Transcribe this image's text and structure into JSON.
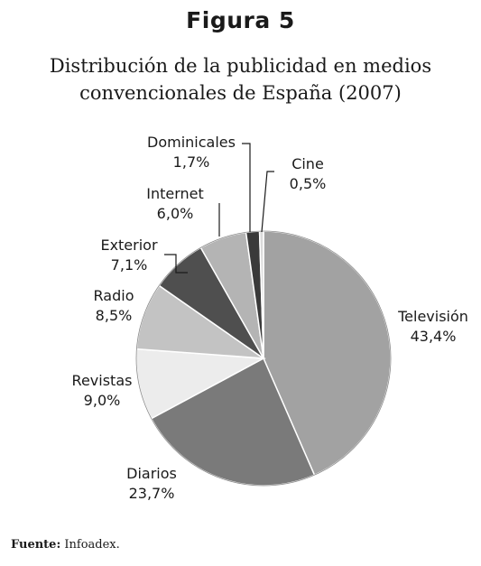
{
  "figure_label": "Figura 5",
  "title_lines": [
    "Distribución de la publicidad en medios",
    "convencionales de España (2007)"
  ],
  "source": {
    "label": "Fuente:",
    "value": "Infoadex."
  },
  "chart_data": {
    "type": "pie",
    "title": "Distribución de la publicidad en medios convencionales de España (2007)",
    "unit": "%",
    "start": "12 o'clock",
    "direction": "clockwise",
    "slices": [
      {
        "name": "Televisión",
        "value": 43.4,
        "label": "43,4%",
        "color": "#a2a2a2"
      },
      {
        "name": "Diarios",
        "value": 23.7,
        "label": "23,7%",
        "color": "#7a7a7a"
      },
      {
        "name": "Revistas",
        "value": 9.0,
        "label": "9,0%",
        "color": "#ececec"
      },
      {
        "name": "Radio",
        "value": 8.5,
        "label": "8,5%",
        "color": "#c3c3c3"
      },
      {
        "name": "Exterior",
        "value": 7.1,
        "label": "7,1%",
        "color": "#4f4f4f"
      },
      {
        "name": "Internet",
        "value": 6.0,
        "label": "6,0%",
        "color": "#b4b4b4"
      },
      {
        "name": "Dominicales",
        "value": 1.7,
        "label": "1,7%",
        "color": "#3a3a3a"
      },
      {
        "name": "Cine",
        "value": 0.5,
        "label": "0,5%",
        "color": "#dadada"
      }
    ]
  }
}
